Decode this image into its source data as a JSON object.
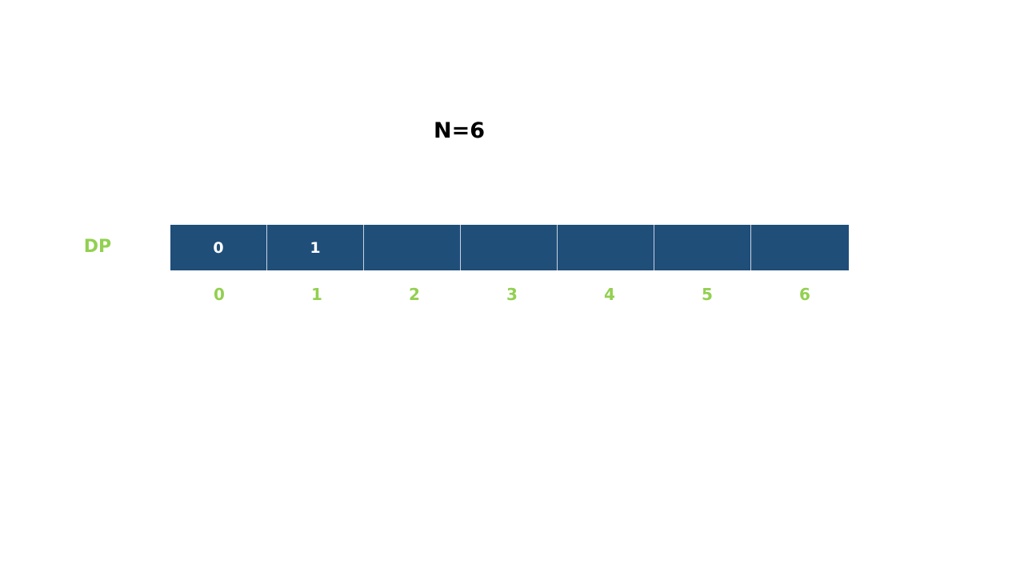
{
  "title": "N=6",
  "array": {
    "label": "DP",
    "cells": [
      {
        "index": "0",
        "value": "0"
      },
      {
        "index": "1",
        "value": "1"
      },
      {
        "index": "2",
        "value": ""
      },
      {
        "index": "3",
        "value": ""
      },
      {
        "index": "4",
        "value": ""
      },
      {
        "index": "5",
        "value": ""
      },
      {
        "index": "6",
        "value": ""
      }
    ]
  },
  "colors": {
    "cell_fill": "#1f4e79",
    "cell_text": "#ffffff",
    "label_green": "#92d050",
    "title_text": "#000000"
  }
}
